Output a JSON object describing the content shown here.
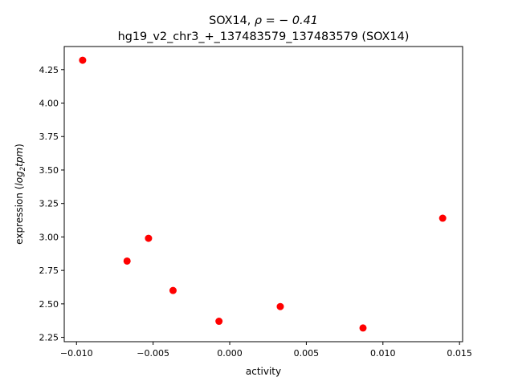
{
  "chart_data": {
    "type": "scatter",
    "title_line1_prefix": "SOX14, ",
    "title_line1_rho": "ρ = − 0.41",
    "title_line2": "hg19_v2_chr3_+_137483579_137483579 (SOX14)",
    "xlabel": "activity",
    "ylabel_prefix": "expression (",
    "ylabel_math": "log",
    "ylabel_sub": "2",
    "ylabel_math2": "tpm",
    "ylabel_suffix": ")",
    "xlim": [
      -0.0108,
      0.0152
    ],
    "ylim": [
      2.2175,
      4.4225
    ],
    "xticks": [
      {
        "value": -0.01,
        "label": "−0.010"
      },
      {
        "value": -0.005,
        "label": "−0.005"
      },
      {
        "value": 0.0,
        "label": "0.000"
      },
      {
        "value": 0.005,
        "label": "0.005"
      },
      {
        "value": 0.01,
        "label": "0.010"
      },
      {
        "value": 0.015,
        "label": "0.015"
      }
    ],
    "yticks": [
      {
        "value": 2.25,
        "label": "2.25"
      },
      {
        "value": 2.5,
        "label": "2.50"
      },
      {
        "value": 2.75,
        "label": "2.75"
      },
      {
        "value": 3.0,
        "label": "3.00"
      },
      {
        "value": 3.25,
        "label": "3.25"
      },
      {
        "value": 3.5,
        "label": "3.50"
      },
      {
        "value": 3.75,
        "label": "3.75"
      },
      {
        "value": 4.0,
        "label": "4.00"
      },
      {
        "value": 4.25,
        "label": "4.25"
      }
    ],
    "points": [
      {
        "x": -0.0096,
        "y": 4.32
      },
      {
        "x": -0.0067,
        "y": 2.82
      },
      {
        "x": -0.0053,
        "y": 2.99
      },
      {
        "x": -0.0037,
        "y": 2.6
      },
      {
        "x": -0.0007,
        "y": 2.37
      },
      {
        "x": 0.0033,
        "y": 2.48
      },
      {
        "x": 0.0087,
        "y": 2.32
      },
      {
        "x": 0.0139,
        "y": 3.14
      }
    ],
    "marker_color": "#ff0000",
    "grid": false
  }
}
